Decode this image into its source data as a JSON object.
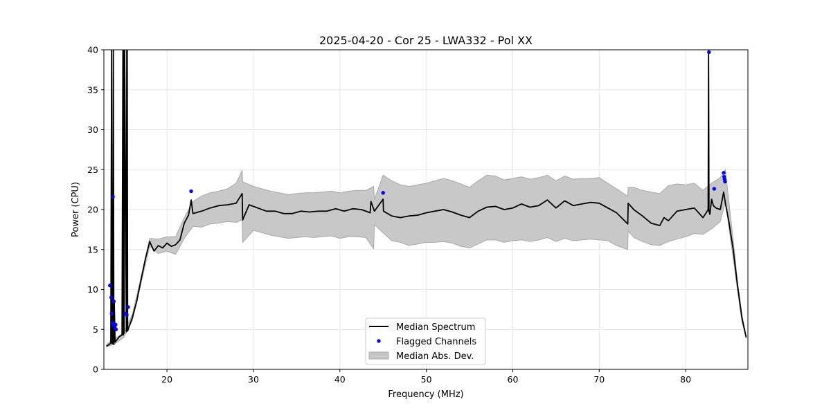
{
  "chart_data": {
    "type": "line",
    "title": "2025-04-20 - Cor 25 - LWA332 - Pol XX",
    "xlabel": "Frequency (MHz)",
    "ylabel": "Power (CPU)",
    "xlim": [
      12.7,
      87.2
    ],
    "ylim": [
      0,
      40
    ],
    "xticks": [
      20,
      30,
      40,
      50,
      60,
      70,
      80
    ],
    "yticks": [
      0,
      5,
      10,
      15,
      20,
      25,
      30,
      35,
      40
    ],
    "xtick_labels": [
      "20",
      "30",
      "40",
      "50",
      "60",
      "70",
      "80"
    ],
    "ytick_labels": [
      "0",
      "5",
      "10",
      "15",
      "20",
      "25",
      "30",
      "35",
      "40"
    ],
    "grid": true,
    "legend_position": "bottom-center",
    "legend": [
      "Median Spectrum",
      "Flagged Channels",
      "Median Abs. Dev."
    ],
    "colors": {
      "median": "#000000",
      "flagged": "#0000ff",
      "mad_fill": "#c8c8c8",
      "mad_edge": "#a8a8a8",
      "grid": "#e6e6e6"
    },
    "series": [
      {
        "name": "Median Spectrum",
        "x": [
          13.0,
          13.3,
          13.5,
          13.6,
          13.65,
          13.7,
          13.75,
          13.8,
          13.85,
          13.9,
          14.0,
          14.2,
          14.5,
          14.8,
          14.9,
          14.95,
          15.0,
          15.05,
          15.1,
          15.3,
          15.35,
          15.4,
          15.45,
          15.5,
          16.0,
          16.5,
          17.0,
          17.5,
          18.0,
          18.5,
          19.0,
          19.5,
          20.0,
          20.5,
          21.0,
          21.5,
          22.0,
          22.5,
          22.8,
          23.0,
          24.0,
          25.0,
          26.0,
          27.0,
          28.0,
          28.7,
          28.75,
          29.5,
          30.5,
          31.5,
          32.5,
          33.5,
          34.5,
          35.5,
          36.5,
          37.5,
          38.5,
          39.5,
          40.5,
          41.5,
          42.5,
          43.5,
          43.6,
          44.0,
          45.0,
          45.05,
          46.0,
          47.0,
          48.0,
          49.0,
          50.0,
          51.0,
          52.0,
          53.0,
          54.0,
          55.0,
          56.0,
          57.0,
          58.0,
          59.0,
          60.0,
          61.0,
          62.0,
          63.0,
          64.0,
          65.0,
          66.0,
          67.0,
          68.0,
          69.0,
          70.0,
          71.0,
          72.0,
          73.3,
          73.35,
          74.0,
          75.0,
          76.0,
          77.0,
          77.5,
          78.0,
          79.0,
          80.0,
          81.0,
          82.0,
          82.5,
          82.6,
          82.65,
          82.7,
          82.8,
          83.0,
          83.2,
          83.5,
          84.0,
          84.4,
          84.6,
          85.0,
          85.5,
          86.0,
          86.5,
          87.0
        ],
        "y": [
          2.9,
          3.1,
          3.3,
          40,
          3.2,
          20.5,
          3.3,
          40,
          3.1,
          8.5,
          3.4,
          3.7,
          4.1,
          4.3,
          40,
          4.3,
          40,
          4.5,
          40,
          4.7,
          40,
          40,
          4.8,
          5.0,
          6.5,
          8.5,
          11.2,
          13.8,
          16.0,
          14.8,
          15.5,
          15.2,
          15.8,
          15.4,
          15.6,
          16.2,
          18.3,
          19.3,
          21.2,
          19.5,
          19.8,
          20.2,
          20.5,
          20.6,
          20.8,
          22.0,
          18.7,
          20.6,
          20.2,
          19.8,
          19.8,
          19.5,
          19.5,
          19.8,
          19.7,
          19.8,
          19.8,
          20.1,
          19.8,
          20.1,
          20.0,
          19.6,
          21.0,
          19.8,
          21.3,
          19.8,
          19.2,
          19.0,
          19.2,
          19.3,
          19.6,
          19.8,
          20.0,
          19.7,
          19.3,
          19.0,
          19.8,
          20.3,
          20.4,
          20.0,
          20.2,
          20.7,
          20.3,
          20.5,
          21.2,
          20.2,
          21.1,
          20.5,
          20.7,
          20.9,
          20.8,
          20.2,
          19.6,
          18.2,
          20.8,
          20.0,
          19.2,
          18.3,
          18.0,
          19.0,
          18.6,
          19.8,
          20.0,
          20.2,
          19.0,
          19.8,
          20.0,
          40,
          19.8,
          19.4,
          21.3,
          20.5,
          20.2,
          20.0,
          22.2,
          20.8,
          18.5,
          15.0,
          10.5,
          6.5,
          4.0
        ]
      },
      {
        "name": "Median Abs. Dev.",
        "x": [
          13.0,
          13.5,
          14.0,
          15.0,
          16.0,
          17.0,
          18.0,
          19.0,
          20.0,
          21.0,
          22.0,
          23.0,
          24.0,
          25.0,
          26.0,
          27.0,
          28.0,
          28.7,
          28.75,
          30.0,
          31.0,
          32.0,
          33.0,
          34.0,
          35.0,
          36.0,
          37.0,
          38.0,
          39.0,
          40.0,
          41.0,
          42.0,
          43.0,
          43.9,
          44.0,
          45.0,
          46.0,
          47.0,
          48.0,
          49.0,
          50.0,
          51.0,
          52.0,
          53.0,
          54.0,
          55.0,
          56.0,
          57.0,
          58.0,
          59.0,
          60.0,
          61.0,
          62.0,
          63.0,
          64.0,
          65.0,
          66.0,
          67.0,
          68.0,
          69.0,
          70.0,
          71.0,
          72.0,
          73.3,
          73.35,
          74.0,
          75.0,
          76.0,
          77.0,
          78.0,
          79.0,
          80.0,
          81.0,
          82.0,
          83.0,
          84.0,
          84.6,
          85.0,
          85.5,
          86.0,
          86.5,
          87.0
        ],
        "upper": [
          3.1,
          3.6,
          3.9,
          4.6,
          6.9,
          11.6,
          16.4,
          16.3,
          16.6,
          16.6,
          19.0,
          21.0,
          21.7,
          22.1,
          22.3,
          22.6,
          23.3,
          24.9,
          23.5,
          22.9,
          22.6,
          22.3,
          22.1,
          21.9,
          22.0,
          22.1,
          22.1,
          22.2,
          22.3,
          22.1,
          22.3,
          22.4,
          22.4,
          22.9,
          21.3,
          24.3,
          23.6,
          23.1,
          22.9,
          23.1,
          23.3,
          23.6,
          23.9,
          23.6,
          23.2,
          22.8,
          23.6,
          24.3,
          24.2,
          23.7,
          23.9,
          24.1,
          23.8,
          24.0,
          24.3,
          23.6,
          24.2,
          23.8,
          23.9,
          23.9,
          24.0,
          23.3,
          22.6,
          21.7,
          22.8,
          22.8,
          22.4,
          22.2,
          22.0,
          23.0,
          23.2,
          23.1,
          23.3,
          22.4,
          23.3,
          24.0,
          25.0,
          21.0,
          16.2,
          11.0,
          6.9,
          4.1
        ],
        "lower": [
          2.8,
          3.0,
          3.2,
          4.0,
          6.1,
          10.8,
          15.4,
          14.5,
          14.8,
          14.4,
          16.4,
          17.9,
          17.8,
          18.2,
          18.3,
          18.5,
          18.4,
          18.7,
          15.9,
          17.4,
          17.1,
          16.8,
          16.6,
          16.4,
          16.5,
          16.6,
          16.5,
          16.6,
          16.7,
          16.4,
          16.6,
          16.6,
          16.5,
          15.1,
          18.1,
          17.1,
          16.1,
          15.9,
          15.5,
          15.7,
          15.9,
          15.9,
          16.0,
          15.8,
          15.4,
          15.2,
          15.7,
          16.2,
          16.2,
          15.9,
          16.1,
          16.2,
          16.0,
          16.2,
          16.5,
          16.0,
          16.4,
          16.1,
          16.2,
          16.3,
          16.2,
          16.1,
          15.5,
          15.0,
          17.3,
          16.5,
          16.0,
          15.6,
          15.5,
          16.0,
          16.3,
          16.6,
          17.0,
          16.9,
          17.6,
          18.5,
          21.0,
          17.8,
          13.9,
          9.8,
          6.0,
          3.9
        ]
      },
      {
        "name": "Flagged Channels",
        "x": [
          13.4,
          13.55,
          13.6,
          13.7,
          13.75,
          13.8,
          13.85,
          13.95,
          14.05,
          14.1,
          15.2,
          15.35,
          15.5,
          22.8,
          45.0,
          82.7,
          83.3,
          84.4,
          84.45,
          84.5,
          84.55
        ],
        "y": [
          10.5,
          9.0,
          7.0,
          5.8,
          21.6,
          5.5,
          8.5,
          5.3,
          5.6,
          5.0,
          7.0,
          6.8,
          7.8,
          22.3,
          22.1,
          39.7,
          22.6,
          24.6,
          24.1,
          23.8,
          23.5
        ]
      }
    ]
  }
}
